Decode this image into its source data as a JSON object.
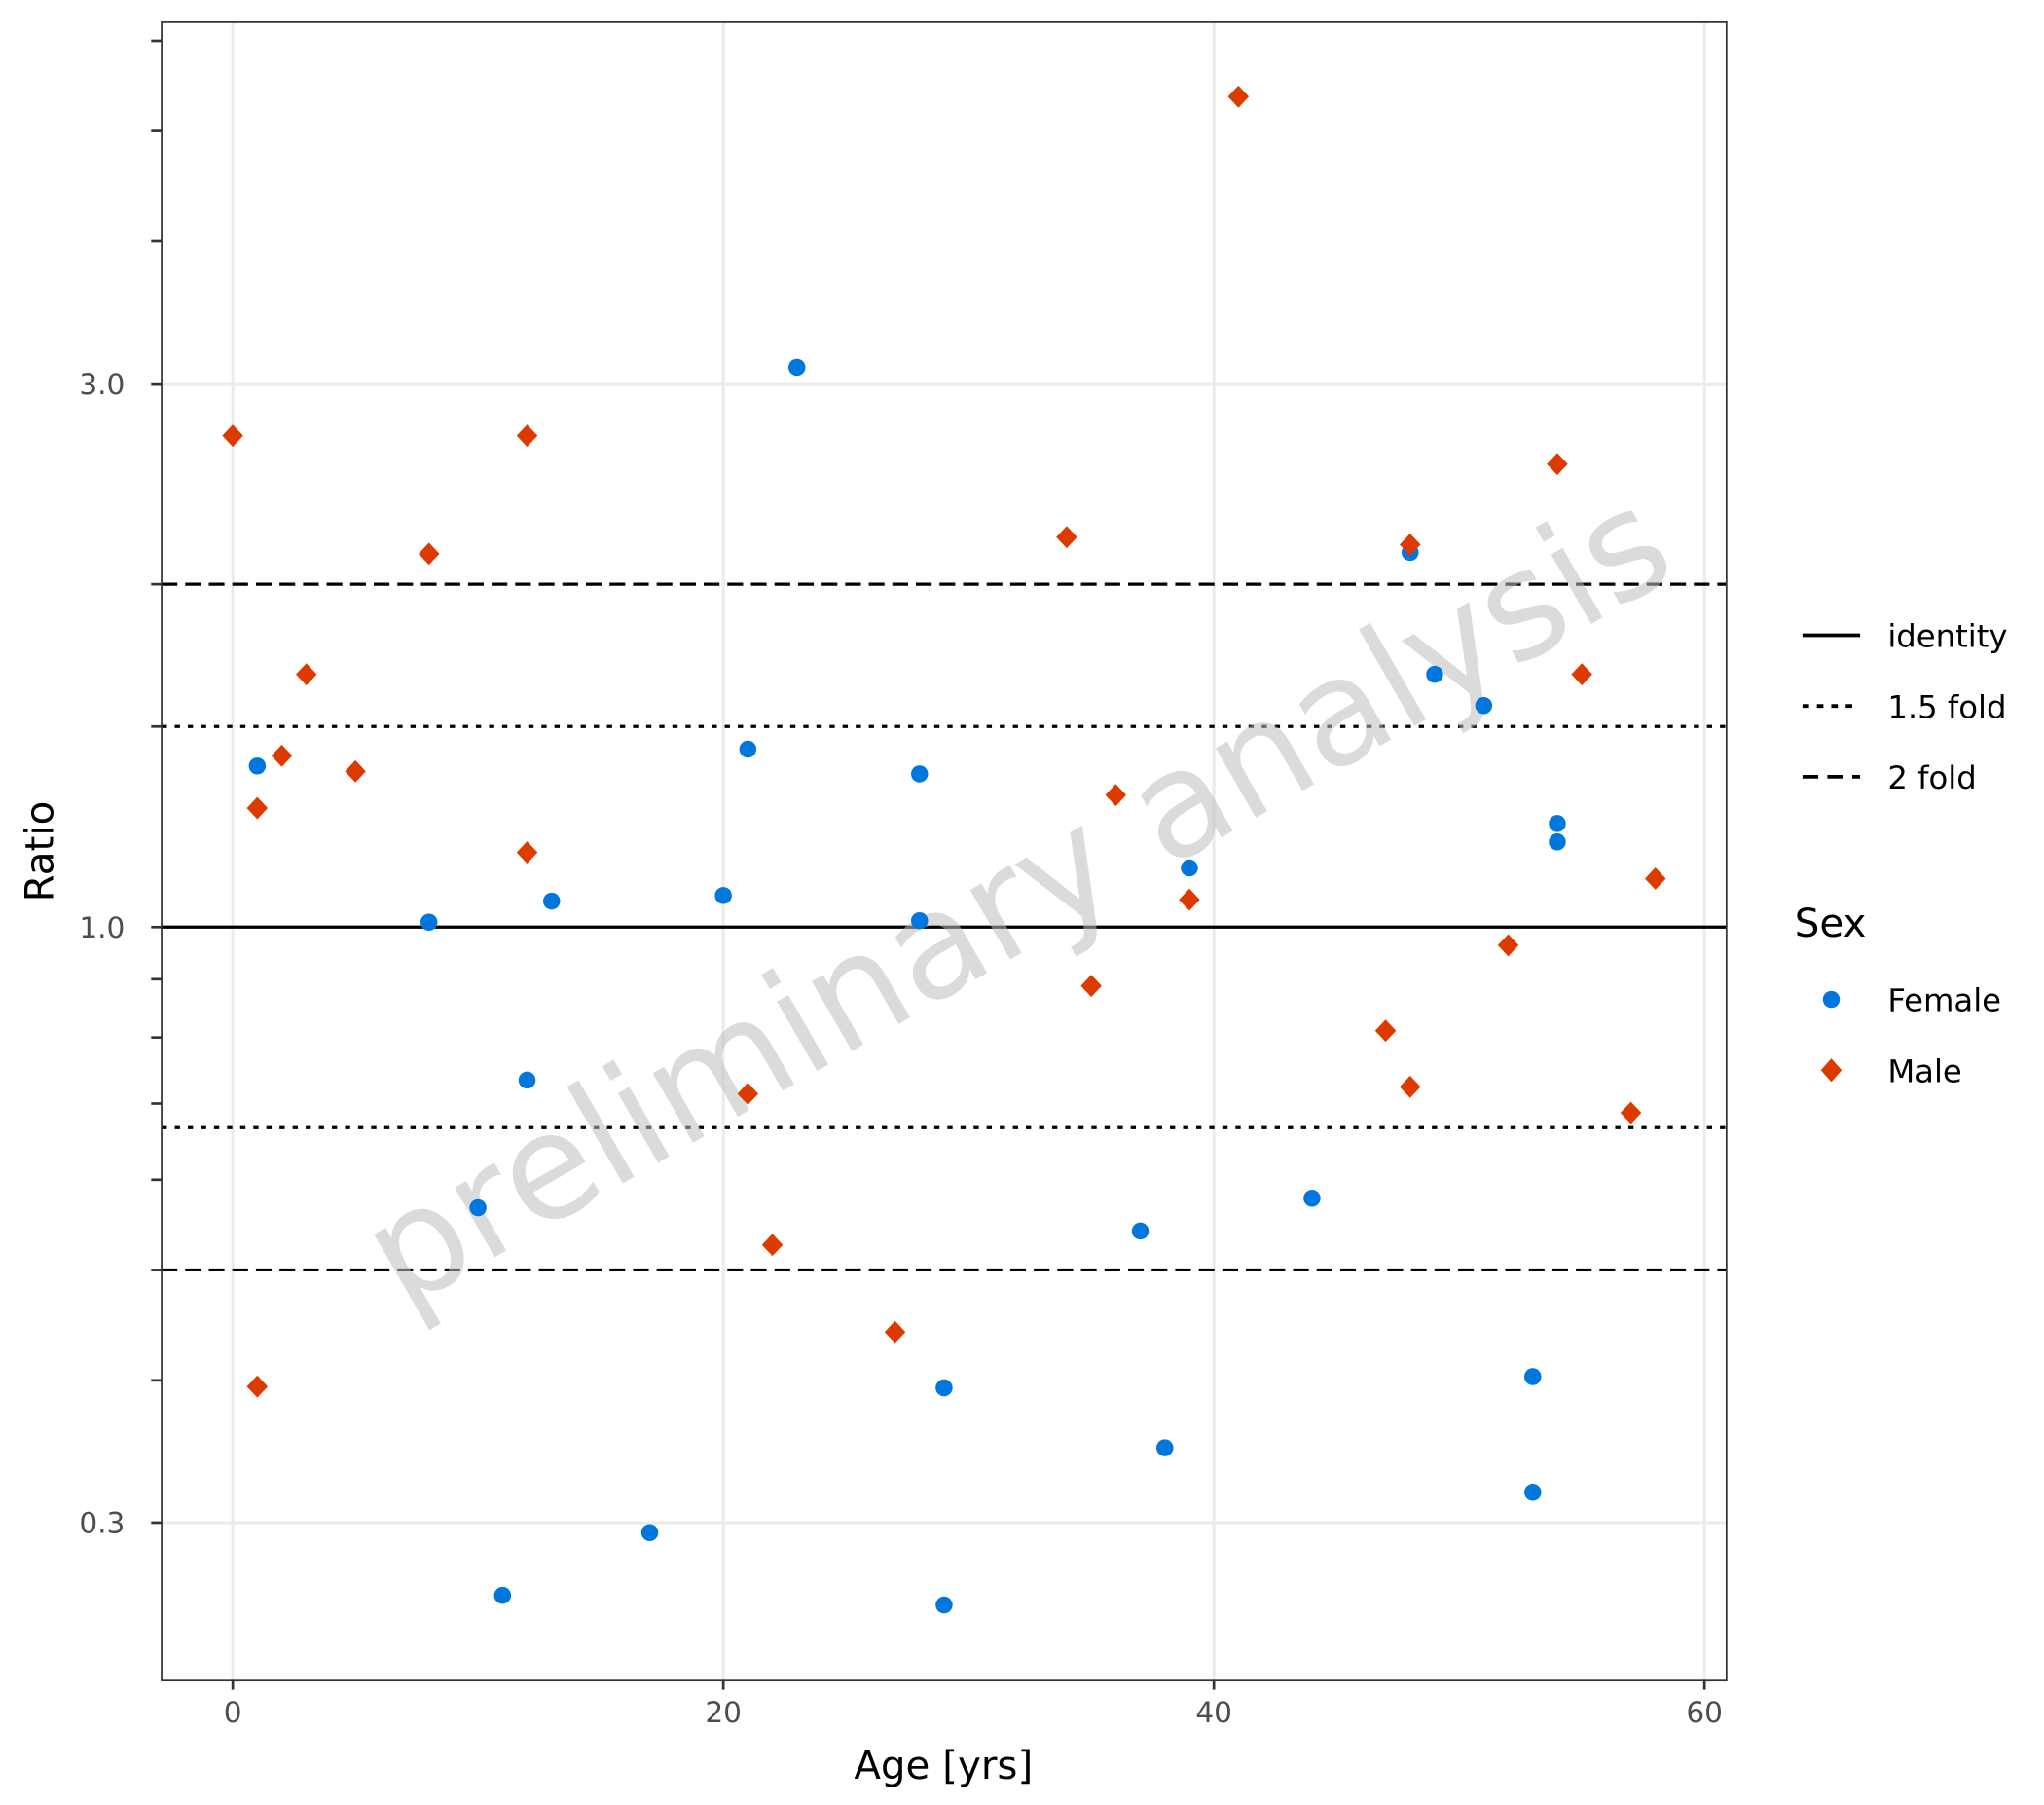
{
  "chart_data": {
    "type": "scatter",
    "xlabel": "Age [yrs]",
    "ylabel": "Ratio",
    "xlim": [
      -2.9,
      60.9
    ],
    "ylim": [
      0.218,
      6.23
    ],
    "yscale": "log",
    "x_ticks": [
      0,
      20,
      40,
      60
    ],
    "x_tick_labels": [
      "0",
      "20",
      "40",
      "60"
    ],
    "y_ticks": [
      0.3,
      1.0,
      3.0
    ],
    "y_tick_labels": [
      "0.3",
      "1.0",
      "3.0"
    ],
    "y_minor_ticks": [
      0.4,
      0.5,
      0.6,
      0.7,
      0.8,
      0.9,
      1.5,
      2,
      4,
      5,
      6
    ],
    "grid": true,
    "reference_lines": [
      {
        "name": "identity",
        "values": [
          1.0
        ],
        "style": "solid"
      },
      {
        "name": "1.5 fold",
        "values": [
          1.5,
          0.6667
        ],
        "style": "dotted"
      },
      {
        "name": "2 fold",
        "values": [
          2.0,
          0.5
        ],
        "style": "dashed"
      }
    ],
    "legend_title": "Sex",
    "legend_placement": "right",
    "series": [
      {
        "name": "Female",
        "color": "#0077DD",
        "marker": "circle",
        "x": [
          1,
          8,
          10,
          11,
          12,
          13,
          17,
          20,
          21,
          23,
          28,
          28,
          29,
          29,
          37,
          38,
          39,
          44,
          48,
          49,
          51,
          53,
          53,
          54,
          54
        ],
        "y": [
          1.385,
          1.01,
          0.567,
          0.259,
          0.734,
          1.054,
          0.294,
          1.066,
          1.433,
          3.1,
          1.363,
          1.013,
          0.394,
          0.254,
          0.541,
          0.349,
          1.127,
          0.578,
          2.133,
          1.667,
          1.565,
          0.403,
          0.319,
          1.233,
          1.188
        ]
      },
      {
        "name": "Male",
        "color": "#DD3A00",
        "marker": "diamond",
        "x": [
          0,
          1,
          1,
          2,
          3,
          5,
          8,
          12,
          12,
          21,
          22,
          27,
          34,
          35,
          36,
          39,
          41,
          47,
          48,
          48,
          52,
          54,
          55,
          57,
          58
        ],
        "y": [
          2.7,
          1.272,
          0.395,
          1.414,
          1.667,
          1.37,
          2.127,
          2.7,
          1.163,
          0.714,
          0.526,
          0.441,
          2.2,
          0.888,
          1.306,
          1.057,
          5.36,
          0.811,
          2.167,
          0.724,
          0.964,
          2.55,
          1.667,
          0.687,
          1.103
        ]
      }
    ],
    "watermark": "preliminary analysis"
  }
}
